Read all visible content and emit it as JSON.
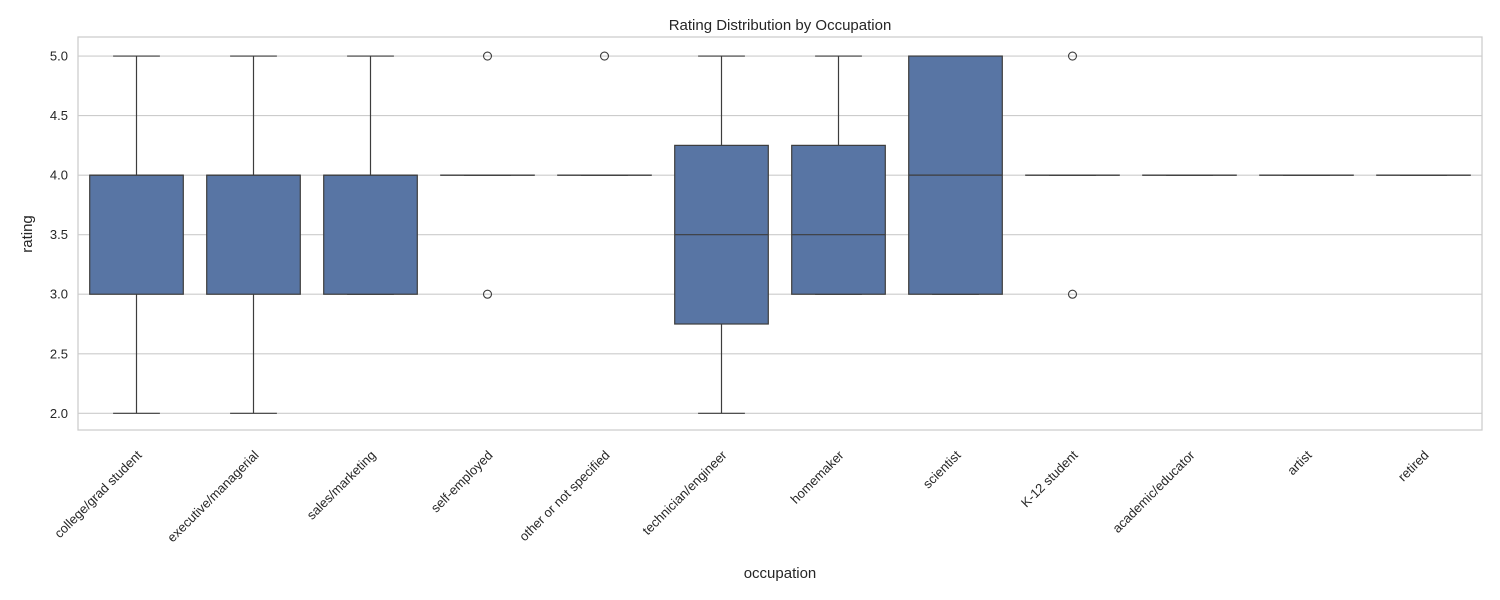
{
  "chart_data": {
    "type": "box",
    "title": "Rating Distribution by Occupation",
    "xlabel": "occupation",
    "ylabel": "rating",
    "ylim": [
      1.86,
      5.16
    ],
    "yticks": [
      "2.0",
      "2.5",
      "3.0",
      "3.5",
      "4.0",
      "4.5",
      "5.0"
    ],
    "grid": true,
    "box_color": "#5875a4",
    "line_color": "#3d3d3d",
    "categories": [
      "college/grad student",
      "executive/managerial",
      "sales/marketing",
      "self-employed",
      "other or not specified",
      "technician/engineer",
      "homemaker",
      "scientist",
      "K-12 student",
      "academic/educator",
      "artist",
      "retired"
    ],
    "boxes": [
      {
        "category": "college/grad student",
        "whisker_low": 2.0,
        "q1": 3.0,
        "median": 4.0,
        "q3": 4.0,
        "whisker_high": 5.0,
        "outliers": []
      },
      {
        "category": "executive/managerial",
        "whisker_low": 2.0,
        "q1": 3.0,
        "median": 4.0,
        "q3": 4.0,
        "whisker_high": 5.0,
        "outliers": []
      },
      {
        "category": "sales/marketing",
        "whisker_low": 3.0,
        "q1": 3.0,
        "median": 4.0,
        "q3": 4.0,
        "whisker_high": 5.0,
        "outliers": []
      },
      {
        "category": "self-employed",
        "whisker_low": 4.0,
        "q1": 4.0,
        "median": 4.0,
        "q3": 4.0,
        "whisker_high": 4.0,
        "outliers": [
          5.0,
          3.0
        ]
      },
      {
        "category": "other or not specified",
        "whisker_low": 4.0,
        "q1": 4.0,
        "median": 4.0,
        "q3": 4.0,
        "whisker_high": 4.0,
        "outliers": [
          5.0
        ]
      },
      {
        "category": "technician/engineer",
        "whisker_low": 2.0,
        "q1": 2.75,
        "median": 3.5,
        "q3": 4.25,
        "whisker_high": 5.0,
        "outliers": []
      },
      {
        "category": "homemaker",
        "whisker_low": 3.0,
        "q1": 3.0,
        "median": 3.5,
        "q3": 4.25,
        "whisker_high": 5.0,
        "outliers": []
      },
      {
        "category": "scientist",
        "whisker_low": 3.0,
        "q1": 3.0,
        "median": 4.0,
        "q3": 5.0,
        "whisker_high": 5.0,
        "outliers": []
      },
      {
        "category": "K-12 student",
        "whisker_low": 4.0,
        "q1": 4.0,
        "median": 4.0,
        "q3": 4.0,
        "whisker_high": 4.0,
        "outliers": [
          5.0,
          3.0
        ]
      },
      {
        "category": "academic/educator",
        "whisker_low": 4.0,
        "q1": 4.0,
        "median": 4.0,
        "q3": 4.0,
        "whisker_high": 4.0,
        "outliers": []
      },
      {
        "category": "artist",
        "whisker_low": 4.0,
        "q1": 4.0,
        "median": 4.0,
        "q3": 4.0,
        "whisker_high": 4.0,
        "outliers": []
      },
      {
        "category": "retired",
        "whisker_low": 4.0,
        "q1": 4.0,
        "median": 4.0,
        "q3": 4.0,
        "whisker_high": 4.0,
        "outliers": []
      }
    ]
  }
}
